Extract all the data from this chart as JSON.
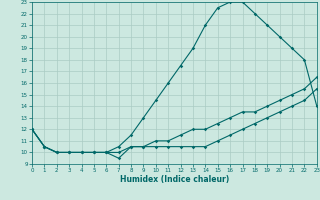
{
  "xlabel": "Humidex (Indice chaleur)",
  "bg_color": "#cce8e0",
  "grid_color": "#aaccc4",
  "line_color": "#006868",
  "xlim": [
    0,
    23
  ],
  "ylim": [
    9,
    23
  ],
  "xticks": [
    0,
    1,
    2,
    3,
    4,
    5,
    6,
    7,
    8,
    9,
    10,
    11,
    12,
    13,
    14,
    15,
    16,
    17,
    18,
    19,
    20,
    21,
    22,
    23
  ],
  "yticks": [
    9,
    10,
    11,
    12,
    13,
    14,
    15,
    16,
    17,
    18,
    19,
    20,
    21,
    22,
    23
  ],
  "line1_x": [
    0,
    1,
    2,
    3,
    4,
    5,
    6,
    7,
    8,
    9,
    10,
    11,
    12,
    13,
    14,
    15,
    16,
    17,
    18,
    19,
    20,
    21,
    22,
    23
  ],
  "line1_y": [
    12,
    10.5,
    10,
    10,
    10,
    10,
    10,
    10,
    10.5,
    10.5,
    11,
    11,
    11.5,
    12,
    12,
    12.5,
    13,
    13.5,
    13.5,
    14,
    14.5,
    15,
    15.5,
    16.5
  ],
  "line2_x": [
    0,
    1,
    2,
    3,
    4,
    5,
    6,
    7,
    8,
    9,
    10,
    11,
    12,
    13,
    14,
    15,
    16,
    17,
    18,
    19,
    20,
    21,
    22,
    23
  ],
  "line2_y": [
    12,
    10.5,
    10,
    10,
    10,
    10,
    10,
    10.5,
    11.5,
    13,
    14.5,
    16,
    17.5,
    19,
    21,
    22.5,
    23,
    23,
    22,
    21,
    20,
    19,
    18,
    14
  ],
  "line3_x": [
    0,
    1,
    2,
    3,
    4,
    5,
    6,
    7,
    8,
    9,
    10,
    11,
    12,
    13,
    14,
    15,
    16,
    17,
    18,
    19,
    20,
    21,
    22,
    23
  ],
  "line3_y": [
    12,
    10.5,
    10,
    10,
    10,
    10,
    10,
    9.5,
    10.5,
    10.5,
    10.5,
    10.5,
    10.5,
    10.5,
    10.5,
    11,
    11.5,
    12,
    12.5,
    13,
    13.5,
    14,
    14.5,
    15.5
  ]
}
